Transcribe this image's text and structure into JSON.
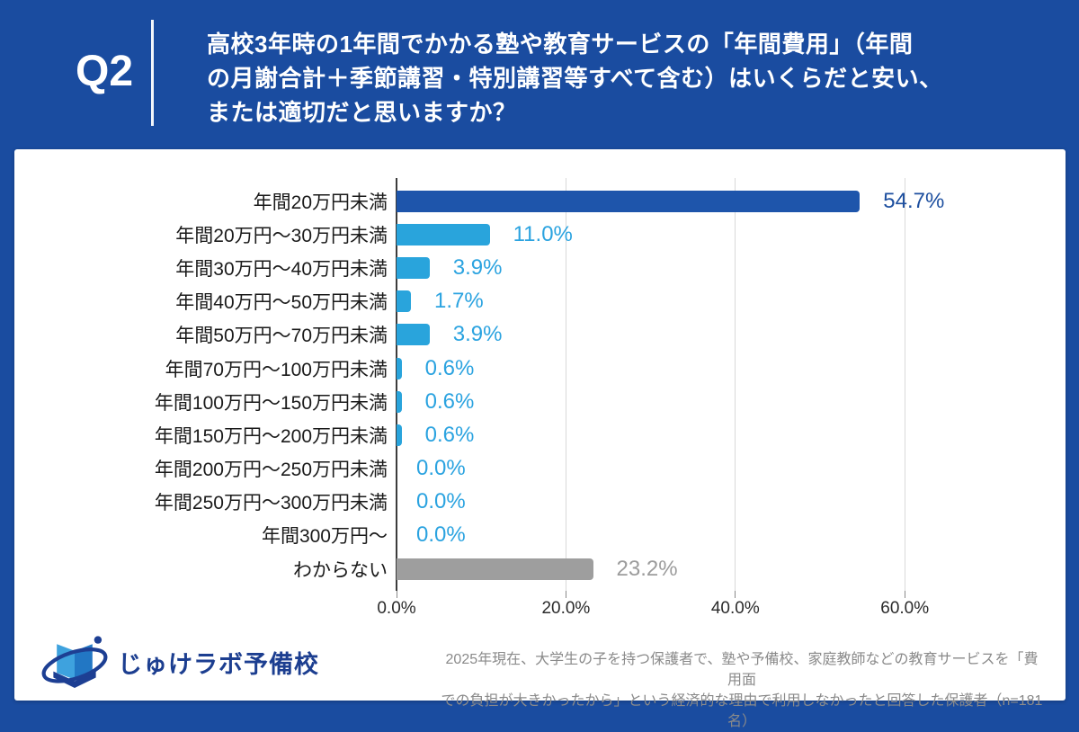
{
  "header": {
    "question_number": "Q2",
    "title_lines": [
      "高校3年時の1年間でかかる塾や教育サービスの「年間費用」（年間",
      "の月謝合計＋季節講習・特別講習等すべて含む）はいくらだと安い、",
      "または適切だと思いますか？"
    ]
  },
  "chart_data": {
    "type": "bar",
    "orientation": "horizontal",
    "title": "",
    "categories": [
      "年間20万円未満",
      "年間20万円〜30万円未満",
      "年間30万円〜40万円未満",
      "年間40万円〜50万円未満",
      "年間50万円〜70万円未満",
      "年間70万円〜100万円未満",
      "年間100万円〜150万円未満",
      "年間150万円〜200万円未満",
      "年間200万円〜250万円未満",
      "年間250万円〜300万円未満",
      "年間300万円〜",
      "わからない"
    ],
    "values": [
      54.7,
      11.0,
      3.9,
      1.7,
      3.9,
      0.6,
      0.6,
      0.6,
      0.0,
      0.0,
      0.0,
      23.2
    ],
    "value_labels": [
      "54.7%",
      "11.0%",
      "3.9%",
      "1.7%",
      "3.9%",
      "0.6%",
      "0.6%",
      "0.6%",
      "0.0%",
      "0.0%",
      "0.0%",
      "23.2%"
    ],
    "x_tick_labels": [
      "0.0%",
      "20.0%",
      "40.0%",
      "60.0%"
    ],
    "x_tick_values": [
      0,
      20,
      40,
      60
    ],
    "xlim": [
      0,
      70
    ],
    "grid": true,
    "legend": false,
    "highlight": {
      "primary_index": 0,
      "muted_index": 11
    }
  },
  "footer": {
    "logo_text": "じゅけラボ予備校",
    "note_lines": [
      "2025年現在、大学生の子を持つ保護者で、塾や予備校、家庭教師などの教育サービスを「費用面",
      "での負担が大きかったから」という経済的な理由で利用しなかったと回答した保護者（n=181名）"
    ]
  },
  "colors": {
    "page_background": "#1a4ca0",
    "card_background": "#ffffff",
    "header_text": "#ffffff",
    "bar_primary": "#1e55ab",
    "bar_accent": "#29a4dc",
    "bar_muted": "#9e9e9e",
    "value_primary": "#1d4f9f",
    "value_accent": "#2ba3e0",
    "value_muted": "#9c9c9c",
    "category_text": "#1a1a1a",
    "axis_line": "#3c3c3c",
    "gridline": "#d9d9d9",
    "tick_text": "#2b2b2b",
    "note_text": "#8a8a8a",
    "logo_text_color": "#1c3e90"
  }
}
